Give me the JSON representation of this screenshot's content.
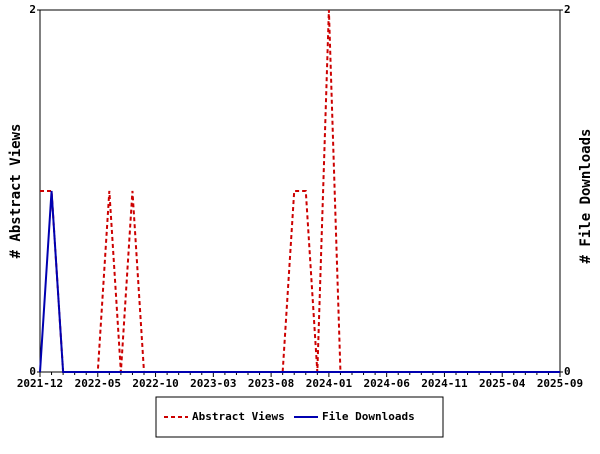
{
  "chart_data": {
    "type": "line",
    "y_label": "# Abstract Views",
    "y2_label": "# File Downloads",
    "categories": [
      "2021-12",
      null,
      null,
      null,
      null,
      "2022-05",
      null,
      null,
      null,
      null,
      "2022-10",
      null,
      null,
      null,
      null,
      "2023-03",
      null,
      null,
      null,
      null,
      "2023-08",
      null,
      null,
      null,
      null,
      "2024-01",
      null,
      null,
      null,
      null,
      "2024-06",
      null,
      null,
      null,
      null,
      "2024-11",
      null,
      null,
      null,
      null,
      "2025-04",
      null,
      null,
      null,
      null,
      "2025-09"
    ],
    "series": [
      {
        "name": "Abstract Views",
        "color": "#cc0000",
        "dash": true,
        "values": [
          1,
          1,
          0,
          0,
          0,
          0,
          1,
          0,
          1,
          0,
          0,
          0,
          0,
          0,
          0,
          0,
          0,
          0,
          0,
          0,
          0,
          0,
          1,
          1,
          0,
          2,
          0,
          0,
          0,
          0,
          0,
          0,
          0,
          0,
          0,
          0,
          0,
          0,
          0,
          0,
          0,
          0,
          0,
          0,
          0,
          0
        ]
      },
      {
        "name": "File Downloads",
        "color": "#0000b0",
        "axis": "y2",
        "values": [
          0,
          1,
          0,
          0,
          0,
          0,
          0,
          0,
          0,
          0,
          0,
          0,
          0,
          0,
          0,
          0,
          0,
          0,
          0,
          0,
          0,
          0,
          0,
          0,
          0,
          0,
          0,
          0,
          0,
          0,
          0,
          0,
          0,
          0,
          0,
          0,
          0,
          0,
          0,
          0,
          0,
          0,
          0,
          0,
          0,
          0
        ]
      }
    ],
    "ylim": [
      0,
      2
    ],
    "yticks": [
      0,
      2
    ],
    "y2lim": [
      0,
      2
    ],
    "y2ticks": [
      0,
      2
    ]
  }
}
